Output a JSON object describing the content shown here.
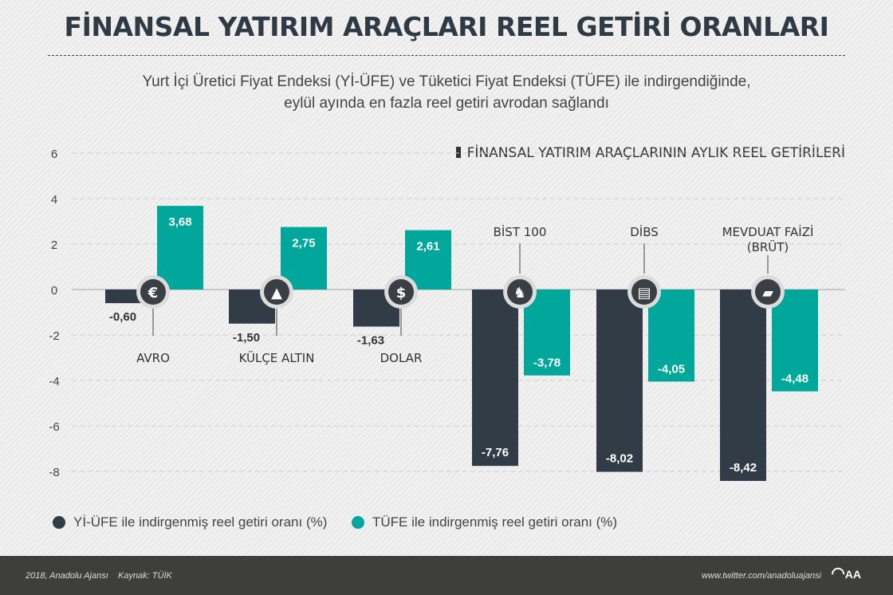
{
  "title": "FİNANSAL YATIRIM ARAÇLARI REEL GETİRİ ORANLARI",
  "subtitle_line1": "Yurt İçi Üretici Fiyat Endeksi (Yİ-ÜFE) ve Tüketici Fiyat Endeksi (TÜFE) ile indirgendiğinde,",
  "subtitle_line2": "eylül ayında en fazla reel getiri avrodan sağlandı",
  "chart_data": {
    "type": "bar",
    "title": "FİNANSAL YATIRIM ARAÇLARININ AYLIK REEL GETİRİLERİ",
    "categories": [
      "AVRO",
      "KÜLÇE ALTIN",
      "DOLAR",
      "BİST 100",
      "DİBS",
      "MEVDUAT FAİZİ (BRÜT)"
    ],
    "category_icons": [
      "euro-icon",
      "gold-bars-icon",
      "dollar-icon",
      "bull-icon",
      "document-icon",
      "money-stack-icon"
    ],
    "series": [
      {
        "name": "Yİ-ÜFE ile indirgenmiş reel getiri oranı (%)",
        "color": "#323c46",
        "values": [
          -0.6,
          -1.5,
          -1.63,
          -7.76,
          -8.02,
          -8.42
        ],
        "labels": [
          "-0,60",
          "-1,50",
          "-1,63",
          "-7,76",
          "-8,02",
          "-8,42"
        ]
      },
      {
        "name": "TÜFE ile indirgenmiş reel getiri oranı (%)",
        "color": "#00a79a",
        "values": [
          3.68,
          2.75,
          2.61,
          -3.78,
          -4.05,
          -4.48
        ],
        "labels": [
          "3,68",
          "2,75",
          "2,61",
          "-3,78",
          "-4,05",
          "-4,48"
        ]
      }
    ],
    "yticks": [
      6,
      4,
      2,
      0,
      -2,
      -4,
      -6,
      -8
    ],
    "ylim": [
      -8.5,
      6
    ],
    "grid": true,
    "legend": "bottom-left"
  },
  "footer": {
    "left": "2018, Anadolu Ajansı    Kaynak: TÜİK",
    "right": "www.twitter.com/anadoluajansi",
    "logo": "AA"
  }
}
